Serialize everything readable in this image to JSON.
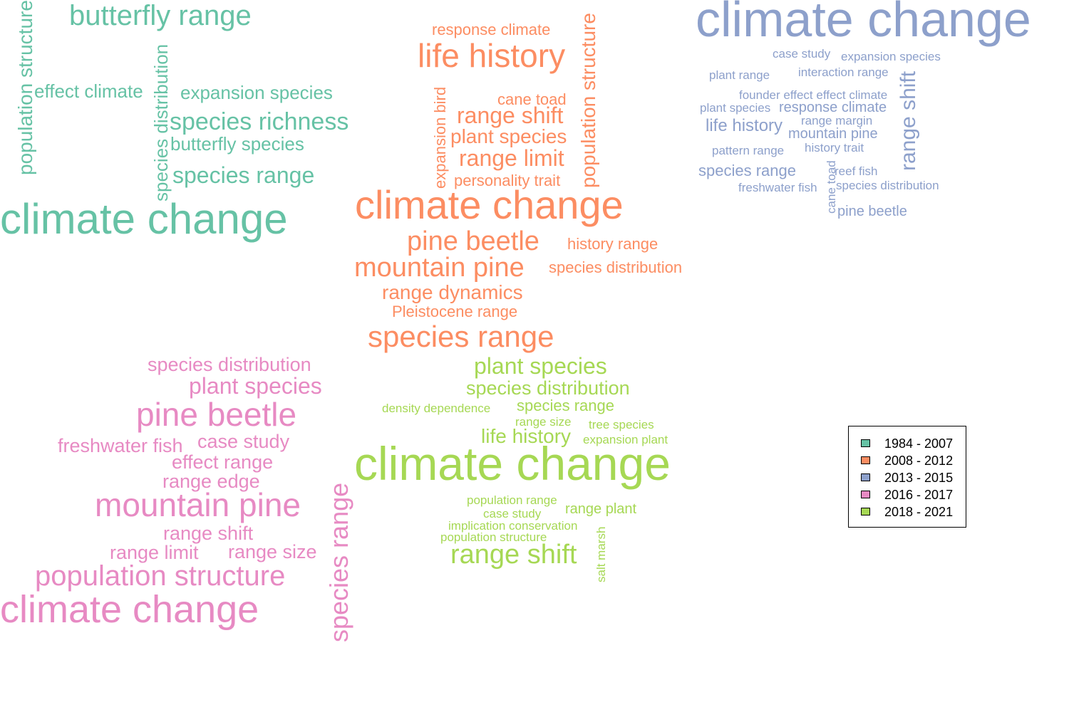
{
  "legend": {
    "items": [
      {
        "label": "1984 - 2007",
        "color": "#66c2a5"
      },
      {
        "label": "2008 - 2012",
        "color": "#fc8d62"
      },
      {
        "label": "2013 - 2015",
        "color": "#8da0cb"
      },
      {
        "label": "2016 - 2017",
        "color": "#e78ac3"
      },
      {
        "label": "2018 - 2021",
        "color": "#a6d854"
      }
    ]
  },
  "clusters": [
    {
      "period": "1984 - 2007",
      "color": "#66c2a5",
      "words": [
        {
          "text": "butterfly range",
          "vertical": false
        },
        {
          "text": "population structure",
          "vertical": true
        },
        {
          "text": "effect climate",
          "vertical": false
        },
        {
          "text": "species distribution",
          "vertical": true
        },
        {
          "text": "expansion species",
          "vertical": false
        },
        {
          "text": "species richness",
          "vertical": false
        },
        {
          "text": "butterfly species",
          "vertical": false
        },
        {
          "text": "species range",
          "vertical": false
        },
        {
          "text": "climate change",
          "vertical": false
        }
      ]
    },
    {
      "period": "2008 - 2012",
      "color": "#fc8d62",
      "words": [
        {
          "text": "response climate",
          "vertical": false
        },
        {
          "text": "life history",
          "vertical": false
        },
        {
          "text": "population structure",
          "vertical": true
        },
        {
          "text": "cane toad",
          "vertical": false
        },
        {
          "text": "expansion bird",
          "vertical": true
        },
        {
          "text": "range shift",
          "vertical": false
        },
        {
          "text": "plant species",
          "vertical": false
        },
        {
          "text": "range limit",
          "vertical": false
        },
        {
          "text": "personality trait",
          "vertical": false
        },
        {
          "text": "climate change",
          "vertical": false
        },
        {
          "text": "pine beetle",
          "vertical": false
        },
        {
          "text": "history range",
          "vertical": false
        },
        {
          "text": "mountain pine",
          "vertical": false
        },
        {
          "text": "species distribution",
          "vertical": false
        },
        {
          "text": "range dynamics",
          "vertical": false
        },
        {
          "text": "Pleistocene range",
          "vertical": false
        },
        {
          "text": "species range",
          "vertical": false
        }
      ]
    },
    {
      "period": "2013 - 2015",
      "color": "#8da0cb",
      "words": [
        {
          "text": "climate change",
          "vertical": false
        },
        {
          "text": "case study",
          "vertical": false
        },
        {
          "text": "expansion species",
          "vertical": false
        },
        {
          "text": "plant range",
          "vertical": false
        },
        {
          "text": "interaction range",
          "vertical": false
        },
        {
          "text": "range shift",
          "vertical": true
        },
        {
          "text": "founder effect effect climate",
          "vertical": false
        },
        {
          "text": "plant species",
          "vertical": false
        },
        {
          "text": "response climate",
          "vertical": false
        },
        {
          "text": "range margin",
          "vertical": false
        },
        {
          "text": "life history",
          "vertical": false
        },
        {
          "text": "mountain pine",
          "vertical": false
        },
        {
          "text": "pattern range",
          "vertical": false
        },
        {
          "text": "history trait",
          "vertical": false
        },
        {
          "text": "species range",
          "vertical": false
        },
        {
          "text": "cane toad",
          "vertical": true
        },
        {
          "text": "reef fish",
          "vertical": false
        },
        {
          "text": "freshwater fish",
          "vertical": false
        },
        {
          "text": "species distribution",
          "vertical": false
        },
        {
          "text": "pine beetle",
          "vertical": false
        }
      ]
    },
    {
      "period": "2016 - 2017",
      "color": "#e78ac3",
      "words": [
        {
          "text": "species distribution",
          "vertical": false
        },
        {
          "text": "plant species",
          "vertical": false
        },
        {
          "text": "pine beetle",
          "vertical": false
        },
        {
          "text": "freshwater fish",
          "vertical": false
        },
        {
          "text": "case study",
          "vertical": false
        },
        {
          "text": "effect range",
          "vertical": false
        },
        {
          "text": "range edge",
          "vertical": false
        },
        {
          "text": "species range",
          "vertical": true
        },
        {
          "text": "mountain pine",
          "vertical": false
        },
        {
          "text": "range shift",
          "vertical": false
        },
        {
          "text": "range limit",
          "vertical": false
        },
        {
          "text": "range size",
          "vertical": false
        },
        {
          "text": "population structure",
          "vertical": false
        },
        {
          "text": "climate change",
          "vertical": false
        }
      ]
    },
    {
      "period": "2018 - 2021",
      "color": "#a6d854",
      "words": [
        {
          "text": "plant species",
          "vertical": false
        },
        {
          "text": "species distribution",
          "vertical": false
        },
        {
          "text": "density dependence",
          "vertical": false
        },
        {
          "text": "species range",
          "vertical": false
        },
        {
          "text": "range size",
          "vertical": false
        },
        {
          "text": "tree species",
          "vertical": false
        },
        {
          "text": "life history",
          "vertical": false
        },
        {
          "text": "expansion plant",
          "vertical": false
        },
        {
          "text": "climate change",
          "vertical": false
        },
        {
          "text": "population range",
          "vertical": false
        },
        {
          "text": "case study",
          "vertical": false
        },
        {
          "text": "range plant",
          "vertical": false
        },
        {
          "text": "implication conservation",
          "vertical": false
        },
        {
          "text": "population structure",
          "vertical": false
        },
        {
          "text": "salt marsh",
          "vertical": true
        },
        {
          "text": "range shift",
          "vertical": false
        }
      ]
    }
  ]
}
